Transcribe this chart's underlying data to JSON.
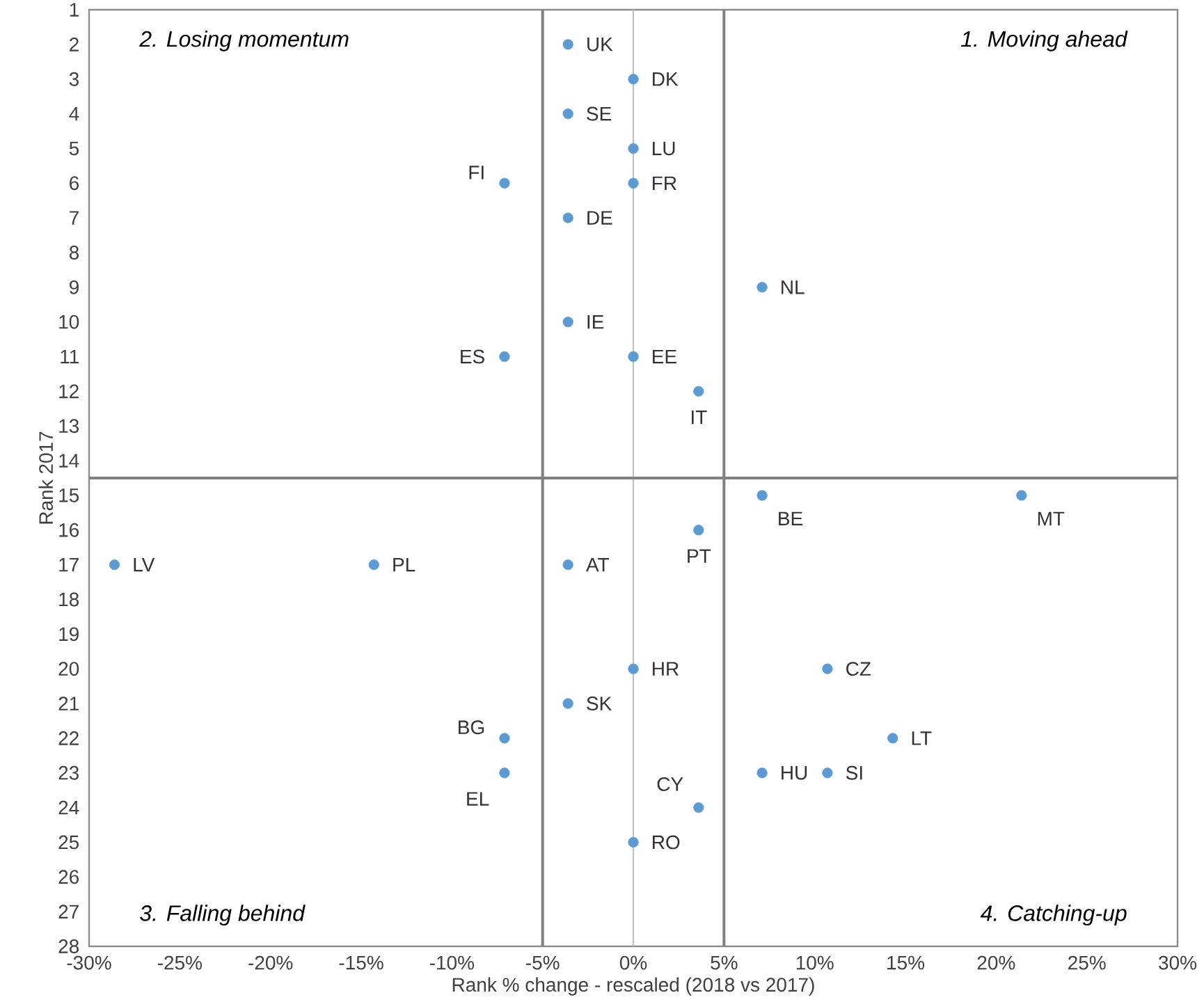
{
  "chart_data": {
    "type": "scatter",
    "xlabel": "Rank % change - rescaled (2018 vs 2017)",
    "ylabel": "Rank 2017",
    "x": [
      -3.6,
      0,
      -3.6,
      0,
      0,
      -7.1,
      -3.6,
      7.1,
      -3.6,
      -7.1,
      0,
      3.6,
      7.1,
      21.4,
      3.6,
      -28.6,
      -14.3,
      -3.6,
      0,
      10.7,
      -3.6,
      -7.1,
      14.3,
      -7.1,
      7.1,
      10.7,
      3.6,
      0
    ],
    "values": [
      2,
      3,
      4,
      5,
      6,
      6,
      7,
      9,
      10,
      11,
      11,
      12,
      15,
      15,
      16,
      17,
      17,
      17,
      20,
      20,
      21,
      22,
      22,
      23,
      23,
      23,
      24,
      25
    ],
    "color": "#5b9bd5",
    "marker": "circle",
    "xlim": [
      -30,
      30
    ],
    "xticks": [
      {
        "value": -30,
        "label": "-30%"
      },
      {
        "value": -25,
        "label": "-25%"
      },
      {
        "value": -20,
        "label": "-20%"
      },
      {
        "value": -15,
        "label": "-15%"
      },
      {
        "value": -10,
        "label": "-10%"
      },
      {
        "value": -5,
        "label": "-5%"
      },
      {
        "value": 0,
        "label": "0%"
      },
      {
        "value": 5,
        "label": "5%"
      },
      {
        "value": 10,
        "label": "10%"
      },
      {
        "value": 15,
        "label": "15%"
      },
      {
        "value": 20,
        "label": "20%"
      },
      {
        "value": 25,
        "label": "25%"
      },
      {
        "value": 30,
        "label": "30%"
      }
    ],
    "ylim": [
      28,
      1
    ],
    "yticks": [
      1,
      2,
      3,
      4,
      5,
      6,
      7,
      8,
      9,
      10,
      11,
      12,
      13,
      14,
      15,
      16,
      17,
      18,
      19,
      20,
      21,
      22,
      23,
      24,
      25,
      26,
      27,
      28
    ],
    "ref_lines": [
      {
        "axis": "x",
        "value": 0,
        "color": "#bfbfbf"
      },
      {
        "axis": "x",
        "value": -5,
        "color": "#808080"
      },
      {
        "axis": "x",
        "value": 5,
        "color": "#808080"
      },
      {
        "axis": "y",
        "value": 14.5,
        "color": "#808080"
      }
    ],
    "annotations": [
      "2. Losing momentum",
      "1. Moving ahead",
      "3. Falling behind",
      "4. Catching-up",
      {
        "text": "UK",
        "x": -3.6,
        "y": 2
      },
      {
        "text": "DK",
        "x": 0,
        "y": 3
      },
      {
        "text": "SE",
        "x": -3.6,
        "y": 4
      },
      {
        "text": "LU",
        "x": 0,
        "y": 5
      },
      {
        "text": "FR",
        "x": 0,
        "y": 6
      },
      {
        "text": "FI",
        "x": -7.1,
        "y": 6
      },
      {
        "text": "DE",
        "x": -3.6,
        "y": 7
      },
      {
        "text": "NL",
        "x": 7.1,
        "y": 9
      },
      {
        "text": "IE",
        "x": -3.6,
        "y": 10
      },
      {
        "text": "ES",
        "x": -7.1,
        "y": 11
      },
      {
        "text": "EE",
        "x": 0,
        "y": 11
      },
      {
        "text": "IT",
        "x": 3.6,
        "y": 12
      },
      {
        "text": "BE",
        "x": 7.1,
        "y": 15
      },
      {
        "text": "MT",
        "x": 21.4,
        "y": 15
      },
      {
        "text": "PT",
        "x": 3.6,
        "y": 16
      },
      {
        "text": "LV",
        "x": -28.6,
        "y": 17
      },
      {
        "text": "PL",
        "x": -14.3,
        "y": 17
      },
      {
        "text": "AT",
        "x": -3.6,
        "y": 17
      },
      {
        "text": "HR",
        "x": 0,
        "y": 20
      },
      {
        "text": "CZ",
        "x": 10.7,
        "y": 20
      },
      {
        "text": "SK",
        "x": -3.6,
        "y": 21
      },
      {
        "text": "BG",
        "x": -7.1,
        "y": 22
      },
      {
        "text": "LT",
        "x": 14.3,
        "y": 22
      },
      {
        "text": "EL",
        "x": -7.1,
        "y": 23
      },
      {
        "text": "HU",
        "x": 7.1,
        "y": 23
      },
      {
        "text": "SI",
        "x": 10.7,
        "y": 23
      },
      {
        "text": "CY",
        "x": 3.6,
        "y": 24
      },
      {
        "text": "RO",
        "x": 0,
        "y": 25
      }
    ]
  }
}
